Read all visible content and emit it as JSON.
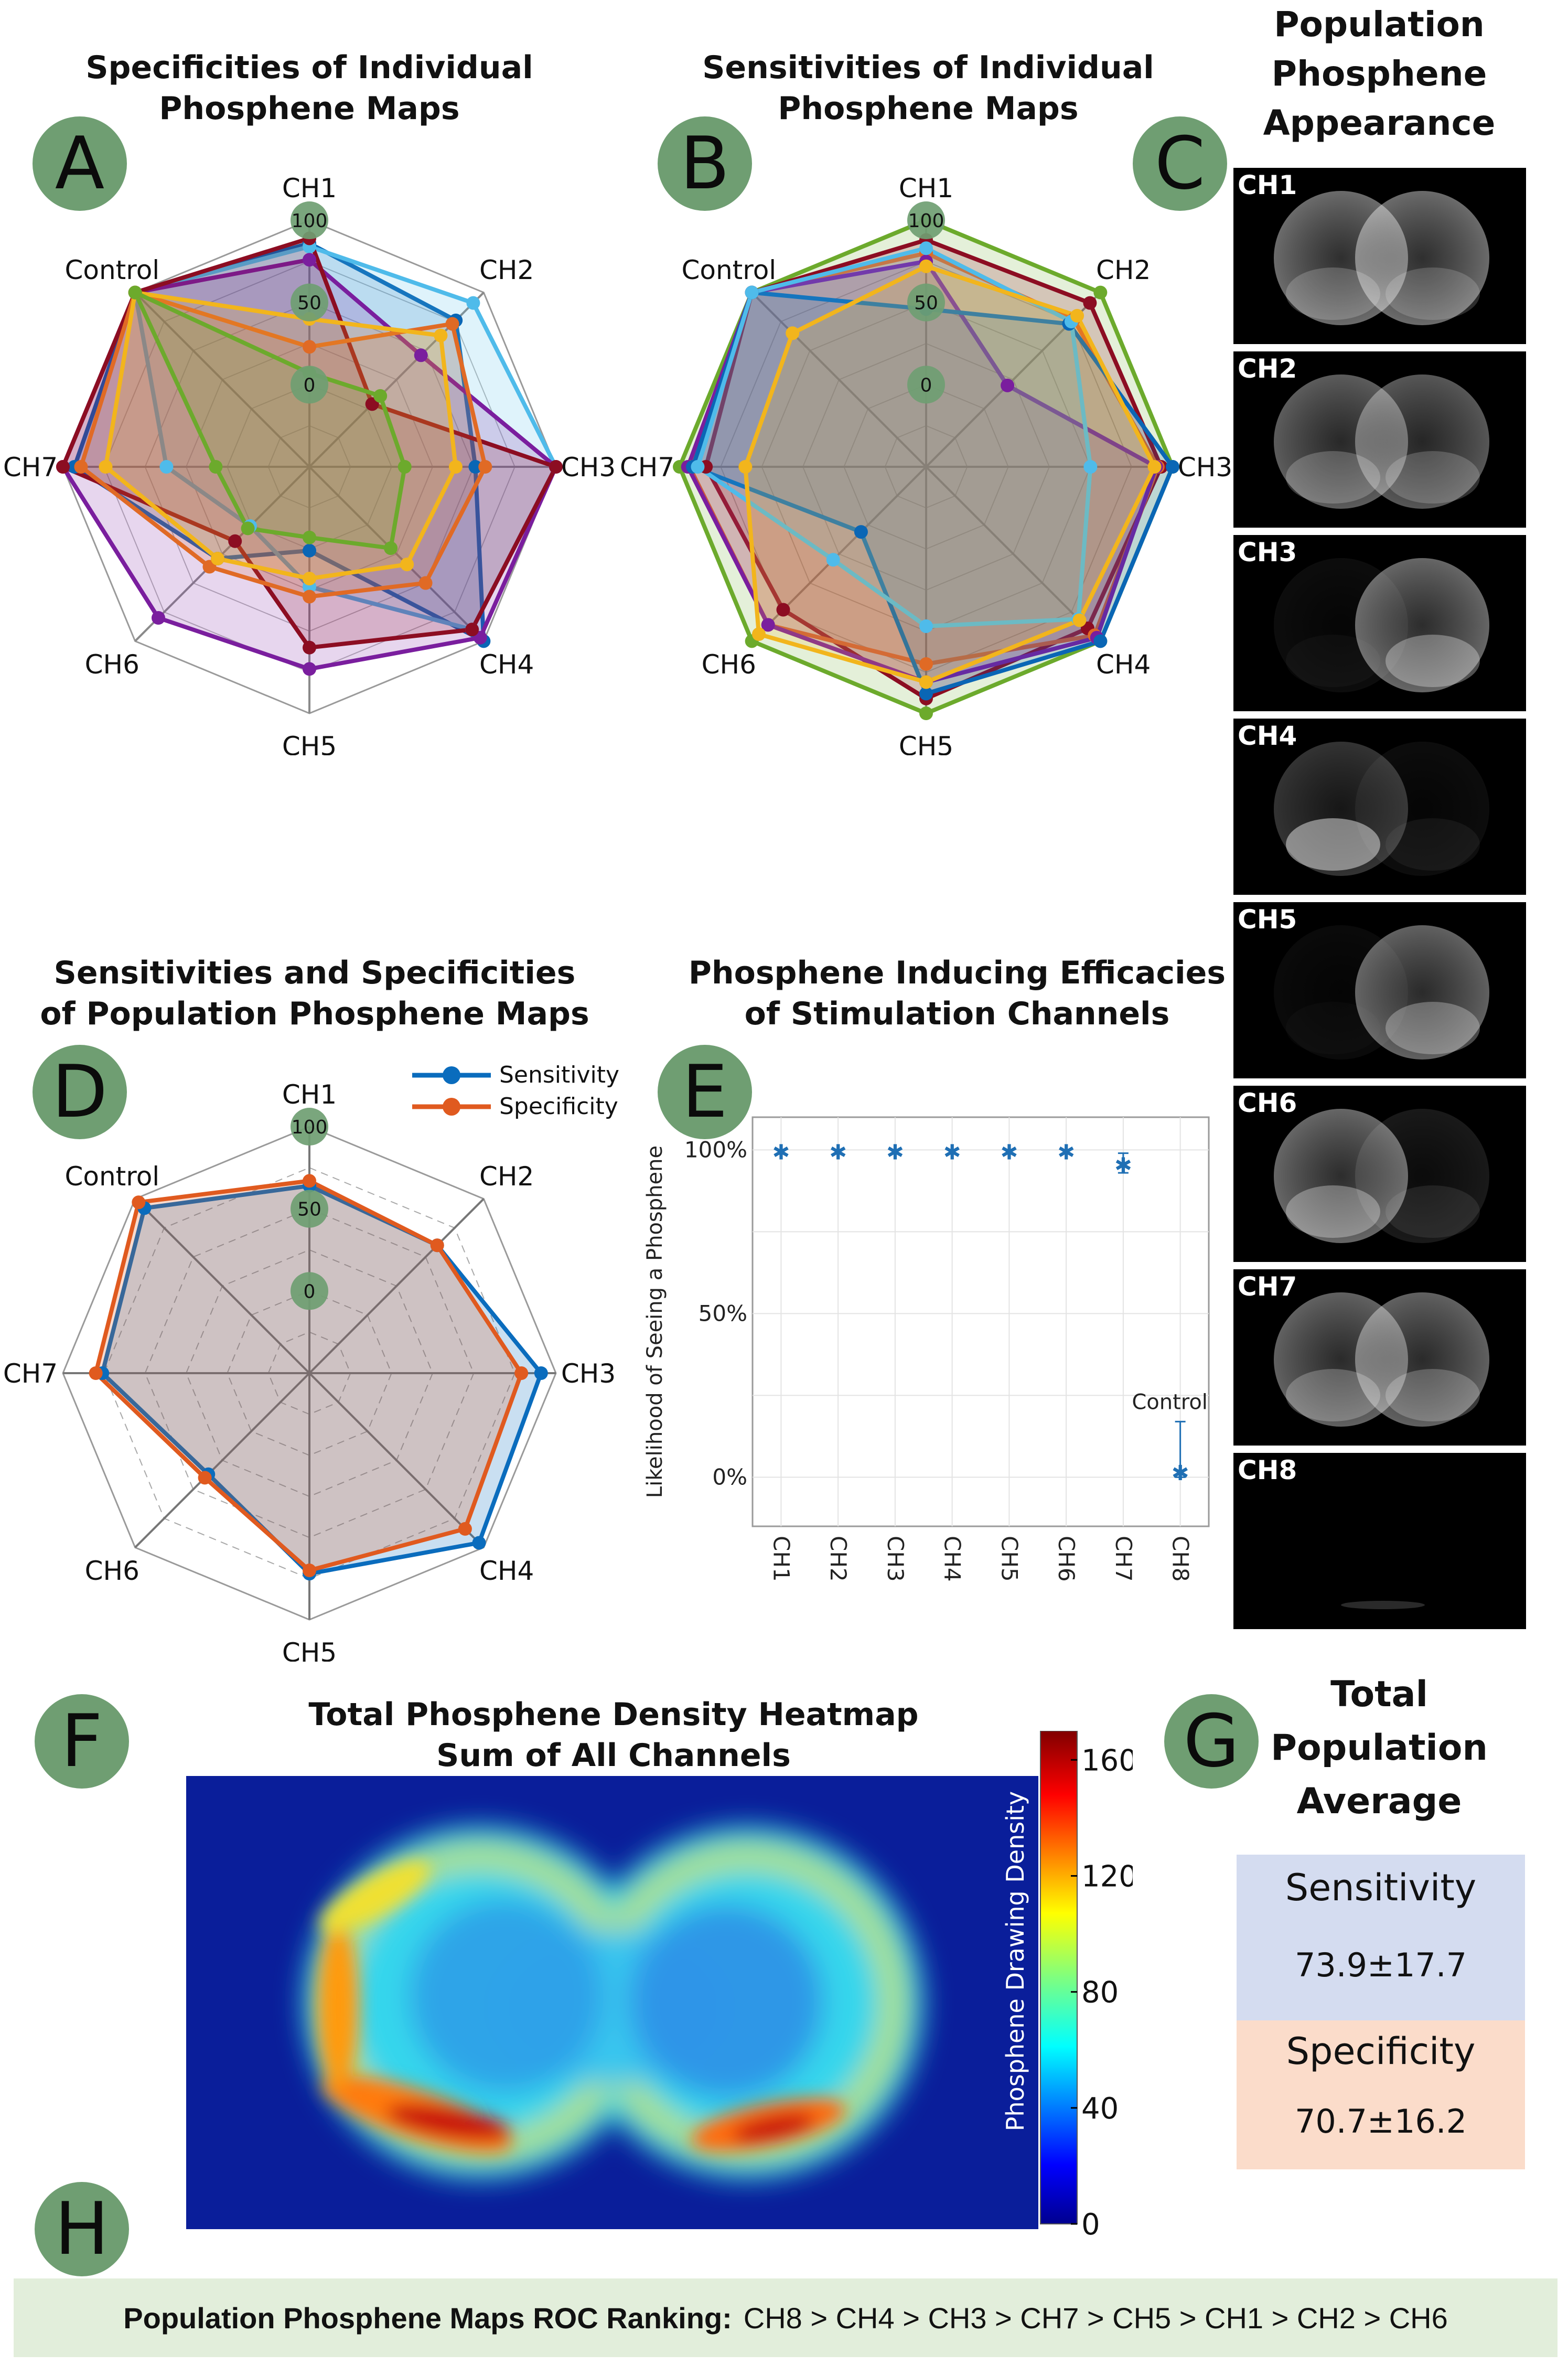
{
  "panels": {
    "A": {
      "letter": "A",
      "title": [
        "Specificities of Individual",
        "Phosphene Maps"
      ]
    },
    "B": {
      "letter": "B",
      "title": [
        "Sensitivities of Individual",
        "Phosphene Maps"
      ]
    },
    "C": {
      "letter": "C",
      "title": [
        "Population",
        "Phosphene",
        "Appearance"
      ]
    },
    "D": {
      "letter": "D",
      "title": [
        "Sensitivities and Specificities",
        "of Population Phosphene Maps"
      ]
    },
    "E": {
      "letter": "E",
      "title": [
        "Phosphene Inducing Efficacies",
        "of Stimulation Channels"
      ]
    },
    "F": {
      "letter": "F",
      "title": [
        "Total Phosphene Density Heatmap",
        "Sum of All Channels"
      ]
    },
    "G": {
      "letter": "G",
      "title": [
        "Total",
        "Population",
        "Average"
      ]
    },
    "H": {
      "letter": "H"
    }
  },
  "chart_data": [
    {
      "id": "A",
      "type": "radar",
      "title": "Specificities of Individual Phosphene Maps",
      "axes": [
        "CH1",
        "CH2",
        "CH3",
        "CH4",
        "CH5",
        "CH6",
        "CH7",
        "Control"
      ],
      "rings": [
        "100",
        "50",
        "0"
      ],
      "range": [
        -50,
        100
      ],
      "series": [
        {
          "name": "s1",
          "color": "#0a66b5",
          "values": [
            86,
            76,
            51,
            100,
            1,
            29,
            93,
            100
          ]
        },
        {
          "name": "s2",
          "color": "#4fbbea",
          "values": [
            84,
            91,
            100,
            90,
            23,
            1,
            37,
            100
          ]
        },
        {
          "name": "s3",
          "color": "#7a1e9e",
          "values": [
            76,
            46,
            100,
            97,
            73,
            80,
            100,
            100
          ]
        },
        {
          "name": "s4",
          "color": "#8c0d22",
          "values": [
            89,
            4,
            100,
            90,
            60,
            14,
            100,
            100
          ]
        },
        {
          "name": "s5",
          "color": "#e06a25",
          "values": [
            23,
            73,
            57,
            50,
            29,
            36,
            89,
            100
          ]
        },
        {
          "name": "s6",
          "color": "#f2b51c",
          "values": [
            40,
            63,
            39,
            34,
            18,
            29,
            74,
            100
          ]
        },
        {
          "name": "s7",
          "color": "#6caa2c",
          "values": [
            7,
            11,
            8,
            20,
            -7,
            3,
            7,
            100
          ]
        }
      ]
    },
    {
      "id": "B",
      "type": "radar",
      "title": "Sensitivities of Individual Phosphene Maps",
      "axes": [
        "CH1",
        "CH2",
        "CH3",
        "CH4",
        "CH5",
        "CH6",
        "CH7",
        "Control"
      ],
      "rings": [
        "100",
        "50",
        "0"
      ],
      "range": [
        -50,
        100
      ],
      "series": [
        {
          "name": "s1",
          "color": "#6caa2c",
          "values": [
            100,
            100,
            100,
            100,
            100,
            100,
            100,
            100
          ]
        },
        {
          "name": "s2",
          "color": "#8c0d22",
          "values": [
            88,
            91,
            93,
            89,
            91,
            73,
            84,
            100
          ]
        },
        {
          "name": "s3",
          "color": "#e06a25",
          "values": [
            80,
            77,
            91,
            95,
            70,
            86,
            94,
            100
          ]
        },
        {
          "name": "s4",
          "color": "#7a1e9e",
          "values": [
            75,
            20,
            90,
            97,
            81,
            86,
            95,
            100
          ]
        },
        {
          "name": "s5",
          "color": "#0a66b5",
          "values": [
            46,
            73,
            100,
            100,
            88,
            6,
            92,
            100
          ]
        },
        {
          "name": "s6",
          "color": "#4fbbea",
          "values": [
            83,
            75,
            50,
            81,
            47,
            30,
            89,
            100
          ]
        },
        {
          "name": "s7",
          "color": "#f2b51c",
          "values": [
            72,
            80,
            89,
            82,
            81,
            94,
            60,
            65
          ]
        }
      ]
    },
    {
      "id": "C",
      "type": "image-grid",
      "tiles": [
        "CH1",
        "CH2",
        "CH3",
        "CH4",
        "CH5",
        "CH6",
        "CH7",
        "CH8"
      ]
    },
    {
      "id": "D",
      "type": "radar",
      "title": "Sensitivities and Specificities of Population Phosphene Maps",
      "axes": [
        "CH1",
        "CH2",
        "CH3",
        "CH4",
        "CH5",
        "CH6",
        "CH7",
        "Control"
      ],
      "rings": [
        "100",
        "50",
        "0"
      ],
      "range": [
        -50,
        100
      ],
      "legend": {
        "position": "top-right",
        "entries": [
          "Sensitivity",
          "Specificity"
        ]
      },
      "series": [
        {
          "name": "Sensitivity",
          "color": "#0a6cbd",
          "values": [
            64,
            60,
            91,
            96,
            72,
            37,
            76,
            92
          ]
        },
        {
          "name": "Specificity",
          "color": "#e05a1f",
          "values": [
            67,
            60,
            79,
            84,
            70,
            40,
            80,
            97
          ]
        }
      ]
    },
    {
      "id": "E",
      "type": "scatter",
      "title": "Phosphene Inducing Efficacies of Stimulation Channels",
      "ylabel": "Likelihood of Seeing a Phosphene",
      "categories": [
        "CH1",
        "CH2",
        "CH3",
        "CH4",
        "CH5",
        "CH6",
        "CH7",
        "CH8"
      ],
      "values": [
        100,
        100,
        100,
        100,
        100,
        100,
        96,
        2
      ],
      "err_low": [
        0,
        0,
        0,
        0,
        0,
        0,
        3,
        2
      ],
      "err_high": [
        0,
        0,
        0,
        0,
        0,
        0,
        3,
        15
      ],
      "yticks": [
        "100%",
        "50%",
        "0%"
      ],
      "ylim": [
        -15,
        110
      ],
      "annotation": "Control",
      "color": "#1f6fb4"
    },
    {
      "id": "F",
      "type": "heatmap",
      "title": "Total Phosphene Density Heatmap Sum of All Channels",
      "colorbar_label": "Phosphene Drawing Density",
      "colorbar_ticks": [
        "160",
        "120",
        "80",
        "40",
        "0"
      ],
      "range": [
        0,
        170
      ]
    }
  ],
  "summary": {
    "sensitivity_label": "Sensitivity",
    "sensitivity_value": "73.9±17.7",
    "specificity_label": "Specificity",
    "specificity_value": "70.7±16.2",
    "sens_bg": "#d4dcf0",
    "spec_bg": "#fbdcca"
  },
  "ranking": {
    "label": "Population Phosphene Maps ROC Ranking:",
    "text": "CH8 > CH4 > CH3 > CH7 > CH5 > CH1 > CH2 > CH6",
    "bg": "#e2eedb"
  }
}
